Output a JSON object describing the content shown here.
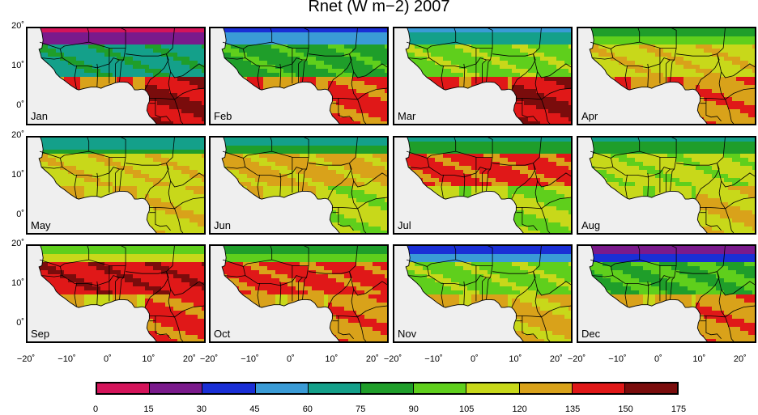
{
  "title": "Rnet (W m−2) 2007",
  "chart_data": {
    "type": "heatmap",
    "title": "Rnet (W m−2) 2007",
    "panels": [
      "Jan",
      "Feb",
      "Mar",
      "Apr",
      "May",
      "Jun",
      "Jul",
      "Aug",
      "Sep",
      "Oct",
      "Nov",
      "Dec"
    ],
    "y_tick_labels": [
      "20˚",
      "10˚",
      "0˚"
    ],
    "x_tick_labels": [
      "−20˚",
      "−10˚",
      "0˚",
      "10˚",
      "20˚"
    ],
    "xlim": [
      -20,
      24
    ],
    "ylim": [
      -5,
      20
    ],
    "colorbar": {
      "levels": [
        0,
        15,
        30,
        45,
        60,
        75,
        90,
        105,
        120,
        135,
        150,
        175
      ],
      "labels": [
        "0",
        "15",
        "30",
        "45",
        "60",
        "75",
        "90",
        "105",
        "120",
        "135",
        "150",
        "175"
      ],
      "colors": [
        "#d4145a",
        "#7a1a8c",
        "#1a2fd6",
        "#3a9bd6",
        "#14a08a",
        "#1f9e2a",
        "#5fcf1c",
        "#c8d81a",
        "#d9a21a",
        "#e01818",
        "#7a0c0c"
      ]
    },
    "monthly_fields": {
      "Jan": {
        "north_sahara_min": 10,
        "sahel": 70,
        "coast": 130,
        "central_africa_south": 150
      },
      "Feb": {
        "north_sahara_min": 40,
        "sahel": 85,
        "coast": 130,
        "central_africa_south": 140
      },
      "Mar": {
        "north_sahara_min": 55,
        "sahel": 100,
        "coast": 140,
        "central_africa_south": 150
      },
      "Apr": {
        "north_sahara_min": 80,
        "sahel": 115,
        "coast": 130,
        "central_africa_south": 130
      },
      "May": {
        "north_sahara_min": 60,
        "sahel": 115,
        "coast": 120,
        "central_africa_south": 115
      },
      "Jun": {
        "north_sahara_min": 65,
        "sahel": 125,
        "coast": 115,
        "central_africa_south": 110
      },
      "Jul": {
        "north_sahara_min": 70,
        "sahel": 140,
        "coast": 110,
        "central_africa_south": 105
      },
      "Aug": {
        "north_sahara_min": 70,
        "sahel": 110,
        "coast": 110,
        "central_africa_south": 120
      },
      "Sep": {
        "north_sahara_min": 95,
        "sahel": 145,
        "coast": 120,
        "central_africa_south": 140
      },
      "Oct": {
        "north_sahara_min": 80,
        "sahel": 140,
        "coast": 125,
        "central_africa_south": 130
      },
      "Nov": {
        "north_sahara_min": 35,
        "sahel": 100,
        "coast": 125,
        "central_africa_south": 125
      },
      "Dec": {
        "north_sahara_min": 20,
        "sahel": 90,
        "coast": 125,
        "central_africa_south": 130
      }
    }
  }
}
